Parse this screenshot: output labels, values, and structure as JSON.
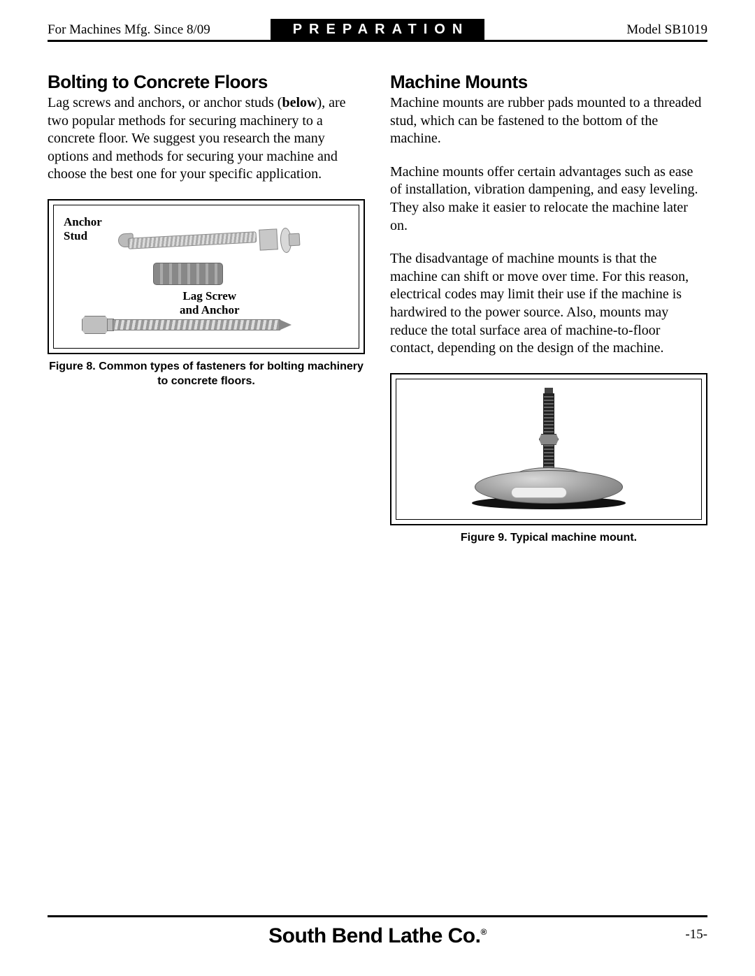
{
  "header": {
    "left": "For Machines Mfg. Since 8/09",
    "center": "PREPARATION",
    "right": "Model SB1019"
  },
  "left_col": {
    "heading": "Bolting to Concrete Floors",
    "para1_pre": "Lag screws and anchors, or anchor studs (",
    "para1_bold": "below",
    "para1_post": "), are two popular methods for securing machinery to a concrete floor. We suggest you research the many options and methods for securing your machine and choose the best one for your specific application.",
    "fig8": {
      "label_anchor_l1": "Anchor",
      "label_anchor_l2": "Stud",
      "label_lag_l1": "Lag Screw",
      "label_lag_l2": "and Anchor",
      "caption": "Figure 8. Common types of fasteners for bolting machinery to concrete floors."
    }
  },
  "right_col": {
    "heading": "Machine Mounts",
    "para1": "Machine mounts are rubber pads mounted to a threaded stud, which can be fastened to the bottom of the machine.",
    "para2": "Machine mounts offer certain advantages such as ease of installation, vibration dampening, and easy leveling. They also make it easier to relocate the machine later on.",
    "para3": "The disadvantage of machine mounts is that the machine can shift or move over time. For this reason, electrical codes may limit their use if the machine is hardwired to the power source. Also, mounts may reduce the total surface area of machine-to-floor contact, depending on the design of the machine.",
    "fig9": {
      "caption": "Figure 9. Typical machine mount."
    }
  },
  "footer": {
    "company": "South Bend Lathe Co.",
    "reg": "®",
    "page": "-15-"
  }
}
